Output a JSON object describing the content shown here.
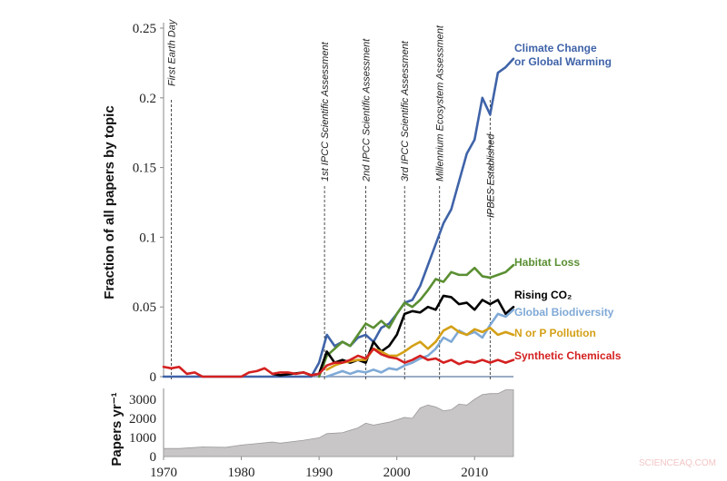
{
  "chart_data": [
    {
      "type": "line",
      "ylabel": "Fraction of all papers by topic",
      "xlim": [
        1970,
        2015
      ],
      "ylim": [
        0,
        0.25
      ],
      "yticks": [
        "0",
        "0.05",
        "0.1",
        "0.15",
        "0.2",
        "0.25"
      ],
      "grid": false,
      "legend": "right (inline labels)",
      "events": [
        {
          "year": 1971,
          "label": "First Earth Day"
        },
        {
          "year": 1990.7,
          "label": "1st IPCC Scientific Assessment"
        },
        {
          "year": 1996,
          "label": "2nd IPCC Scientific Assessment"
        },
        {
          "year": 2001,
          "label": "3rd IPCC Scientific Assessment"
        },
        {
          "year": 2005.5,
          "label": "Millennium Ecosystem Assessment"
        },
        {
          "year": 2012,
          "label": "IPBES Established"
        }
      ],
      "series": [
        {
          "name": "Climate Change or Global Warming",
          "label_lines": [
            "Climate Change",
            "or Global Warming"
          ],
          "color": "#3f63a8",
          "x": [
            1970,
            1989,
            1990,
            1991,
            1992,
            1993,
            1994,
            1995,
            1996,
            1997,
            1998,
            1999,
            2000,
            2001,
            2002,
            2003,
            2004,
            2005,
            2006,
            2007,
            2008,
            2009,
            2010,
            2011,
            2012,
            2013,
            2014,
            2015
          ],
          "y": [
            0,
            0,
            0.01,
            0.03,
            0.022,
            0.025,
            0.022,
            0.028,
            0.03,
            0.025,
            0.035,
            0.038,
            0.045,
            0.053,
            0.055,
            0.065,
            0.08,
            0.095,
            0.11,
            0.12,
            0.14,
            0.16,
            0.17,
            0.2,
            0.188,
            0.218,
            0.222,
            0.228
          ]
        },
        {
          "name": "Habitat Loss",
          "label_lines": [
            "Habitat Loss"
          ],
          "color": "#5a8f32",
          "x": [
            1990,
            1991,
            1992,
            1993,
            1994,
            1995,
            1996,
            1997,
            1998,
            1999,
            2000,
            2001,
            2002,
            2003,
            2004,
            2005,
            2006,
            2007,
            2008,
            2009,
            2010,
            2011,
            2012,
            2013,
            2014,
            2015
          ],
          "y": [
            0,
            0.015,
            0.02,
            0.025,
            0.022,
            0.03,
            0.038,
            0.035,
            0.04,
            0.035,
            0.045,
            0.053,
            0.05,
            0.055,
            0.062,
            0.07,
            0.068,
            0.075,
            0.073,
            0.073,
            0.078,
            0.072,
            0.071,
            0.073,
            0.075,
            0.08
          ]
        },
        {
          "name": "Rising CO₂",
          "label_lines": [
            "Rising CO₂"
          ],
          "color": "#000000",
          "x": [
            1984,
            1985,
            1988,
            1989,
            1990,
            1991,
            1992,
            1993,
            1994,
            1995,
            1996,
            1997,
            1998,
            1999,
            2000,
            2001,
            2002,
            2003,
            2004,
            2005,
            2006,
            2007,
            2008,
            2009,
            2010,
            2011,
            2012,
            2013,
            2014,
            2015
          ],
          "y": [
            0.002,
            0.001,
            0.003,
            0.001,
            0.002,
            0.018,
            0.01,
            0.012,
            0.01,
            0.012,
            0.01,
            0.025,
            0.018,
            0.022,
            0.03,
            0.045,
            0.047,
            0.046,
            0.05,
            0.048,
            0.058,
            0.057,
            0.052,
            0.053,
            0.048,
            0.055,
            0.052,
            0.055,
            0.045,
            0.05
          ]
        },
        {
          "name": "Global Biodiversity",
          "label_lines": [
            "Global Biodiversity"
          ],
          "color": "#7fa9d6",
          "x": [
            1991,
            1992,
            1993,
            1994,
            1995,
            1996,
            1997,
            1998,
            1999,
            2000,
            2001,
            2002,
            2003,
            2004,
            2005,
            2006,
            2007,
            2008,
            2009,
            2010,
            2011,
            2012,
            2013,
            2014,
            2015
          ],
          "y": [
            0,
            0.002,
            0.004,
            0.002,
            0.004,
            0.003,
            0.005,
            0.003,
            0.006,
            0.005,
            0.008,
            0.01,
            0.013,
            0.015,
            0.02,
            0.028,
            0.025,
            0.033,
            0.03,
            0.032,
            0.028,
            0.037,
            0.045,
            0.043,
            0.048
          ]
        },
        {
          "name": "N or P Pollution",
          "label_lines": [
            "N or P Pollution"
          ],
          "color": "#d4a017",
          "x": [
            1991,
            1992,
            1993,
            1994,
            1995,
            1996,
            1997,
            1998,
            1999,
            2000,
            2001,
            2002,
            2003,
            2004,
            2005,
            2006,
            2007,
            2008,
            2009,
            2010,
            2011,
            2012,
            2013,
            2014,
            2015
          ],
          "y": [
            0.005,
            0.008,
            0.01,
            0.011,
            0.012,
            0.012,
            0.02,
            0.018,
            0.015,
            0.015,
            0.018,
            0.022,
            0.025,
            0.02,
            0.025,
            0.033,
            0.036,
            0.032,
            0.03,
            0.034,
            0.032,
            0.035,
            0.03,
            0.032,
            0.03
          ]
        },
        {
          "name": "Synthetic Chemicals",
          "label_lines": [
            "Synthetic Chemicals"
          ],
          "color": "#d42020",
          "x": [
            1970,
            1971,
            1972,
            1973,
            1974,
            1975,
            1980,
            1981,
            1982,
            1983,
            1984,
            1985,
            1986,
            1987,
            1988,
            1989,
            1990,
            1991,
            1992,
            1993,
            1994,
            1995,
            1996,
            1997,
            1998,
            1999,
            2000,
            2001,
            2002,
            2003,
            2004,
            2005,
            2006,
            2007,
            2008,
            2009,
            2010,
            2011,
            2012,
            2013,
            2014,
            2015
          ],
          "y": [
            0.007,
            0.006,
            0.007,
            0.002,
            0.003,
            0,
            0,
            0.003,
            0.004,
            0.006,
            0.002,
            0.003,
            0.003,
            0.002,
            0.003,
            0.001,
            0.002,
            0.008,
            0.01,
            0.01,
            0.012,
            0.015,
            0.013,
            0.02,
            0.016,
            0.014,
            0.013,
            0.01,
            0.012,
            0.015,
            0.012,
            0.013,
            0.01,
            0.012,
            0.009,
            0.011,
            0.01,
            0.012,
            0.01,
            0.012,
            0.01,
            0.012
          ]
        }
      ]
    },
    {
      "type": "area",
      "ylabel": "Papers yr⁻¹",
      "xlim": [
        1970,
        2015
      ],
      "ylim": [
        0,
        3500
      ],
      "yticks": [
        "0",
        "1000",
        "2000",
        "3000"
      ],
      "xticks": [
        "1970",
        "1980",
        "1990",
        "2000",
        "2010"
      ],
      "color": "#c8c6c6",
      "x": [
        1970,
        1972,
        1975,
        1978,
        1980,
        1982,
        1984,
        1985,
        1988,
        1990,
        1991,
        1993,
        1995,
        1996,
        1997,
        1999,
        2001,
        2002,
        2003,
        2004,
        2005,
        2006,
        2007,
        2008,
        2009,
        2010,
        2011,
        2012,
        2013,
        2014,
        2015
      ],
      "y": [
        420,
        420,
        500,
        480,
        600,
        680,
        760,
        700,
        850,
        980,
        1200,
        1250,
        1500,
        1750,
        1650,
        1800,
        2050,
        2000,
        2550,
        2700,
        2600,
        2400,
        2450,
        2750,
        2700,
        3000,
        3250,
        3300,
        3300,
        3500,
        3500
      ]
    }
  ],
  "watermark": "SCIENCEAQ.COM"
}
